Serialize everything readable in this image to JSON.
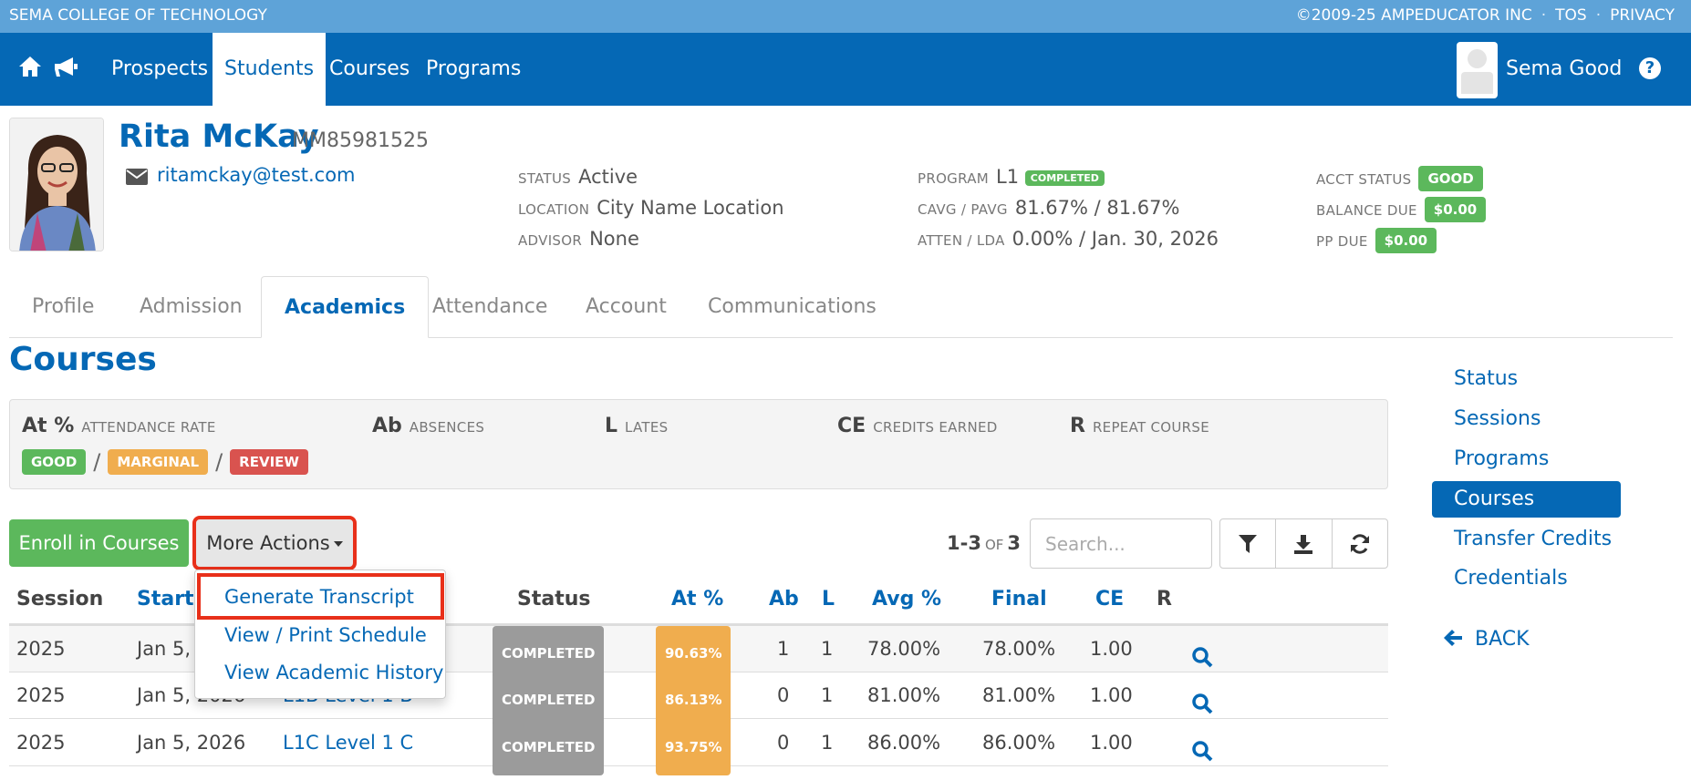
{
  "topbar": {
    "org": "SEMA COLLEGE OF TECHNOLOGY",
    "copyright": "©2009-25 AMPEDUCATOR INC",
    "sep": "·",
    "tos": "TOS",
    "privacy": "PRIVACY"
  },
  "nav": {
    "items": [
      "Prospects",
      "Students",
      "Courses",
      "Programs"
    ],
    "active": "Students",
    "user": "Sema Good"
  },
  "student": {
    "name": "Rita McKay",
    "id": "MM85981525",
    "email": "ritamckay@test.com",
    "status_label": "STATUS",
    "status": "Active",
    "location_label": "LOCATION",
    "location": "City Name Location",
    "advisor_label": "ADVISOR",
    "advisor": "None",
    "program_label": "PROGRAM",
    "program": "L1",
    "program_badge": "COMPLETED",
    "cavg_label": "CAVG / PAVG",
    "cavg": "81.67% / 81.67%",
    "atten_label": "ATTEN / LDA",
    "atten": "0.00% / Jan. 30, 2026",
    "acct_label": "ACCT STATUS",
    "acct": "GOOD",
    "balance_label": "BALANCE DUE",
    "balance": "$0.00",
    "pp_label": "PP DUE",
    "pp": "$0.00"
  },
  "tabs": [
    "Profile",
    "Admission",
    "Academics",
    "Attendance",
    "Account",
    "Communications"
  ],
  "active_tab": "Academics",
  "section_title": "Courses",
  "legend": {
    "at": {
      "key": "At %",
      "desc": "ATTENDANCE RATE"
    },
    "ab": {
      "key": "Ab",
      "desc": "ABSENCES"
    },
    "l": {
      "key": "L",
      "desc": "LATES"
    },
    "ce": {
      "key": "CE",
      "desc": "CREDITS EARNED"
    },
    "r": {
      "key": "R",
      "desc": "REPEAT COURSE"
    },
    "good": "GOOD",
    "marginal": "MARGINAL",
    "review": "REVIEW",
    "slash": "/"
  },
  "actions": {
    "enroll": "Enroll in Courses",
    "more": "More Actions",
    "count_range": "1-3",
    "count_of": "OF",
    "count_total": "3",
    "search_placeholder": "Search..."
  },
  "dropdown": [
    "Generate Transcript",
    "View / Print Schedule",
    "View Academic History"
  ],
  "table": {
    "headers": {
      "session": "Session",
      "start": "Start",
      "status": "Status",
      "at": "At %",
      "ab": "Ab",
      "l": "L",
      "avg": "Avg %",
      "final": "Final",
      "ce": "CE",
      "r": "R"
    },
    "rows": [
      {
        "session": "2025",
        "start": "Jan 5,",
        "course": "",
        "status": "COMPLETED",
        "at": "90.63%",
        "ab": "1",
        "l": "1",
        "avg": "78.00%",
        "final": "78.00%",
        "ce": "1.00"
      },
      {
        "session": "2025",
        "start": "Jan 5, 2026",
        "course": "L1B Level 1 B",
        "status": "COMPLETED",
        "at": "86.13%",
        "ab": "0",
        "l": "1",
        "avg": "81.00%",
        "final": "81.00%",
        "ce": "1.00"
      },
      {
        "session": "2025",
        "start": "Jan 5, 2026",
        "course": "L1C Level 1 C",
        "status": "COMPLETED",
        "at": "93.75%",
        "ab": "0",
        "l": "1",
        "avg": "86.00%",
        "final": "86.00%",
        "ce": "1.00"
      }
    ]
  },
  "sidebar": {
    "items": [
      "Status",
      "Sessions",
      "Programs",
      "Courses",
      "Transfer Credits",
      "Credentials"
    ],
    "active": "Courses",
    "back": "BACK"
  },
  "colors": {
    "brand_blue": "#0568b5",
    "top_blue": "#5ea3d8",
    "green": "#5cb85c",
    "orange": "#f0ad4e",
    "red": "#d9534f",
    "highlight": "#e8301a"
  },
  "icons": [
    "home-icon",
    "megaphone-icon",
    "help-icon",
    "envelope-icon",
    "filter-icon",
    "download-icon",
    "refresh-icon",
    "search-icon",
    "arrow-left-icon"
  ]
}
